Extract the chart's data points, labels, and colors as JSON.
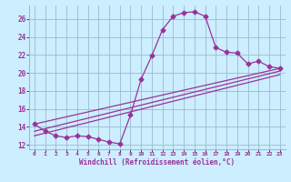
{
  "xlabel": "Windchill (Refroidissement éolien,°C)",
  "bg_color": "#cceeff",
  "grid_color": "#99bbcc",
  "line_color": "#993399",
  "xlim": [
    -0.5,
    23.5
  ],
  "ylim": [
    11.5,
    27.5
  ],
  "xticks": [
    0,
    1,
    2,
    3,
    4,
    5,
    6,
    7,
    8,
    9,
    10,
    11,
    12,
    13,
    14,
    15,
    16,
    17,
    18,
    19,
    20,
    21,
    22,
    23
  ],
  "yticks": [
    12,
    14,
    16,
    18,
    20,
    22,
    24,
    26
  ],
  "curve1_x": [
    0,
    1,
    2,
    3,
    4,
    5,
    6,
    7,
    8,
    9,
    10,
    11,
    12,
    13,
    14,
    15,
    16,
    17,
    18,
    19,
    20,
    21,
    22,
    23
  ],
  "curve1_y": [
    14.3,
    13.5,
    13.0,
    12.8,
    13.0,
    12.9,
    12.6,
    12.3,
    12.1,
    15.3,
    19.3,
    21.9,
    24.8,
    26.3,
    26.7,
    26.8,
    26.3,
    22.8,
    22.3,
    22.2,
    21.0,
    21.3,
    20.7,
    20.5
  ],
  "line2_x": [
    0,
    23
  ],
  "line2_y": [
    14.3,
    20.5
  ],
  "line3_x": [
    0,
    23
  ],
  "line3_y": [
    13.5,
    20.2
  ],
  "line4_x": [
    0,
    23
  ],
  "line4_y": [
    13.0,
    19.8
  ],
  "marker": "D",
  "markersize": 2.5,
  "linewidth": 0.9
}
